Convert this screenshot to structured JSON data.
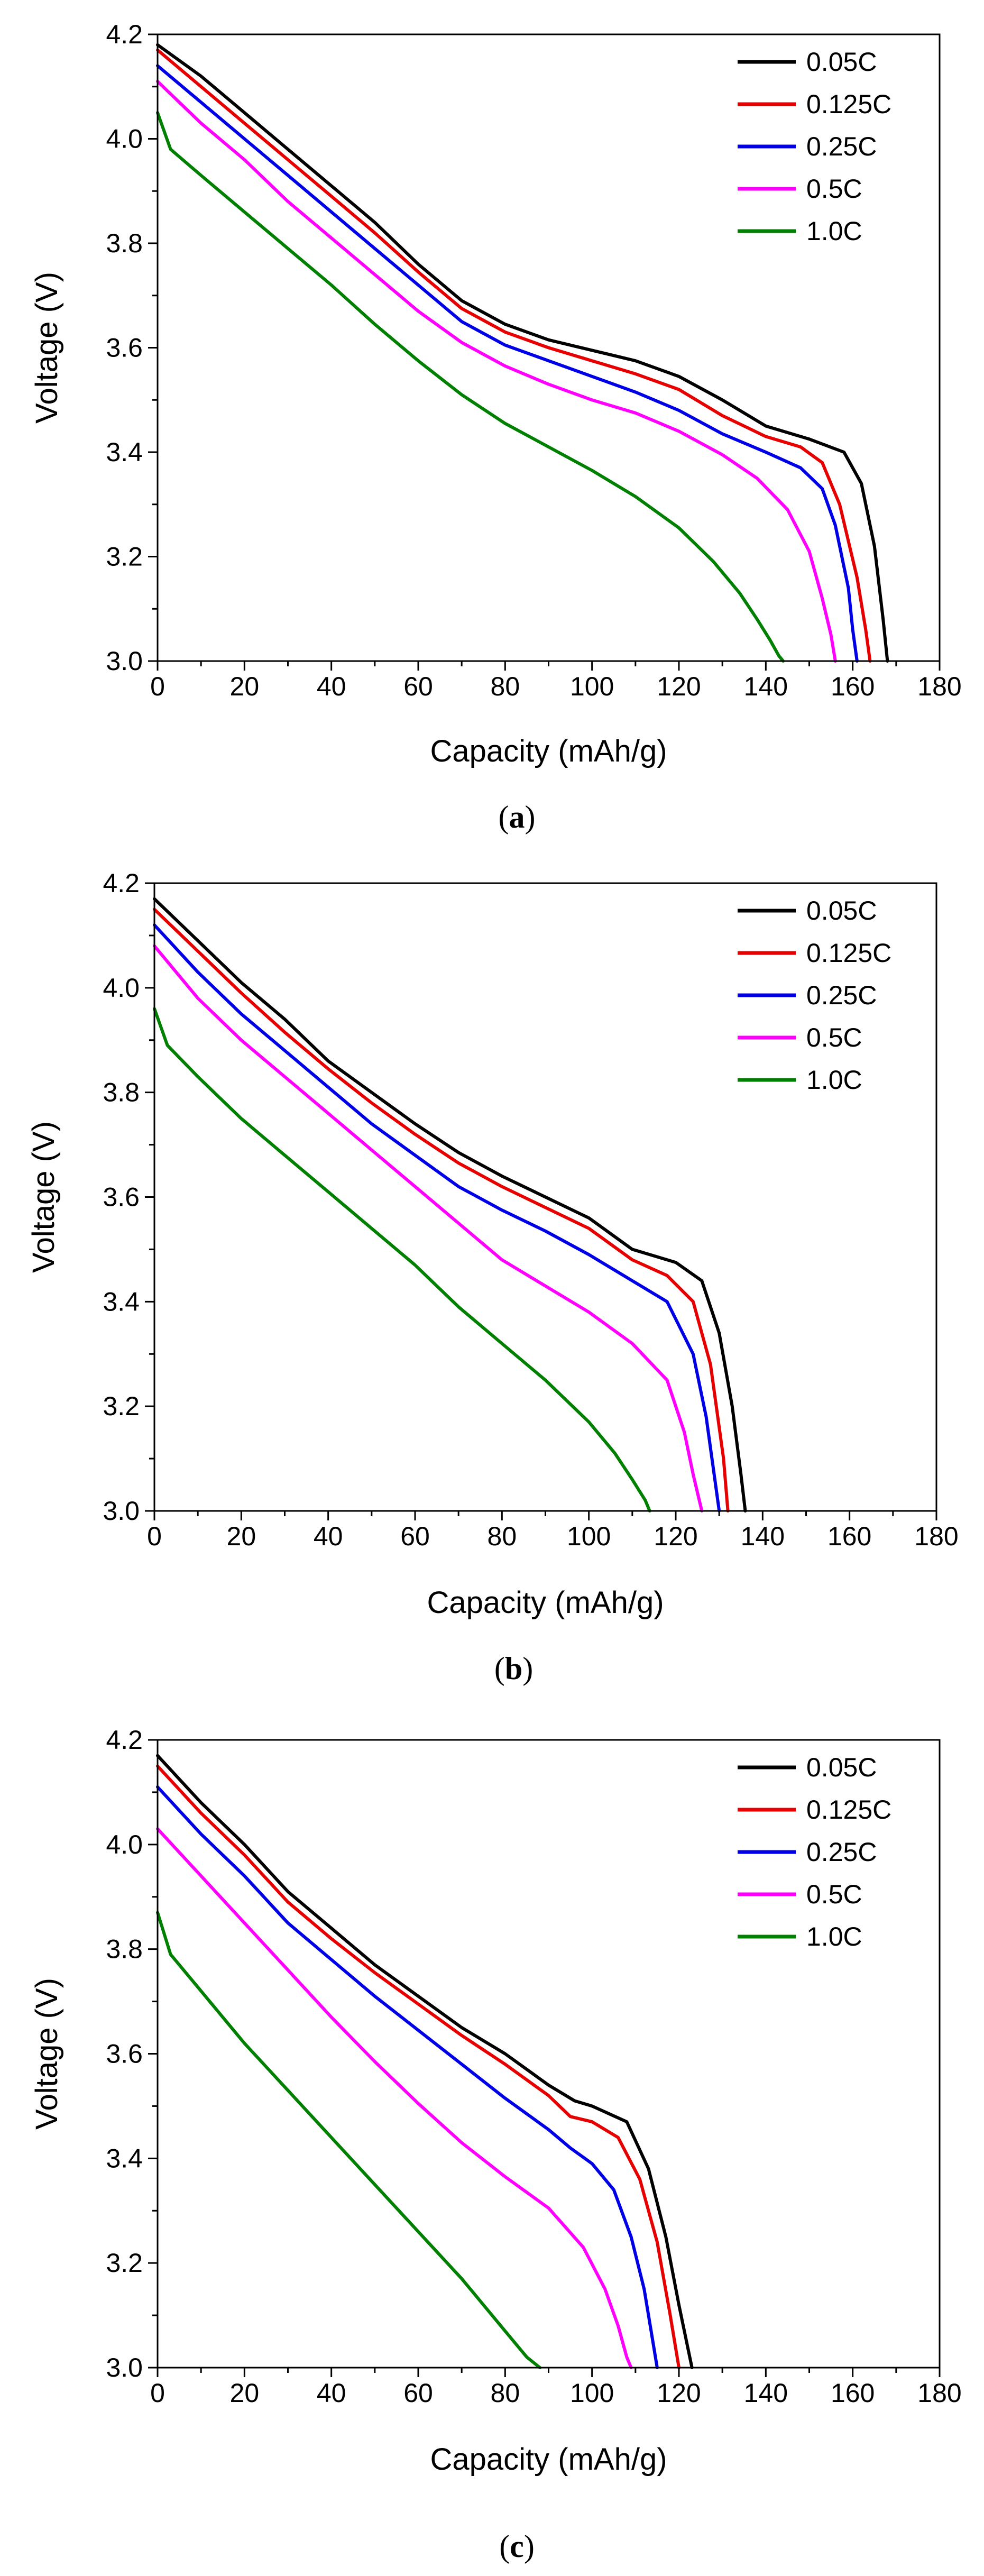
{
  "chart_data": [
    {
      "type": "line",
      "caption": "a",
      "xlabel": "Capacity (mAh/g)",
      "ylabel": "Voltage (V)",
      "xlim": [
        0,
        180
      ],
      "ylim": [
        3.0,
        4.2
      ],
      "xticks": [
        "0",
        "20",
        "40",
        "60",
        "80",
        "100",
        "120",
        "140",
        "160",
        "180"
      ],
      "yticks": [
        "3.0",
        "3.2",
        "3.4",
        "3.6",
        "3.8",
        "4.0",
        "4.2"
      ],
      "grid": false,
      "legend_position": "top-right",
      "series": [
        {
          "name": "0.05C",
          "color": "#000000",
          "x": [
            0,
            10,
            20,
            30,
            40,
            50,
            60,
            70,
            80,
            90,
            100,
            110,
            120,
            130,
            140,
            150,
            158,
            162,
            165,
            167,
            168
          ],
          "y": [
            4.18,
            4.12,
            4.05,
            3.98,
            3.91,
            3.84,
            3.76,
            3.69,
            3.645,
            3.615,
            3.595,
            3.575,
            3.545,
            3.5,
            3.45,
            3.425,
            3.4,
            3.34,
            3.22,
            3.08,
            3.0
          ]
        },
        {
          "name": "0.125C",
          "color": "#e60000",
          "x": [
            0,
            10,
            20,
            30,
            40,
            50,
            60,
            70,
            80,
            90,
            100,
            110,
            120,
            130,
            140,
            148,
            153,
            157,
            161,
            163,
            164
          ],
          "y": [
            4.17,
            4.1,
            4.03,
            3.96,
            3.89,
            3.82,
            3.745,
            3.675,
            3.63,
            3.6,
            3.575,
            3.55,
            3.52,
            3.47,
            3.43,
            3.41,
            3.38,
            3.3,
            3.16,
            3.06,
            3.0
          ]
        },
        {
          "name": "0.25C",
          "color": "#0000e6",
          "x": [
            0,
            10,
            20,
            30,
            40,
            50,
            60,
            70,
            80,
            90,
            100,
            110,
            120,
            130,
            140,
            148,
            153,
            156,
            159,
            160,
            161
          ],
          "y": [
            4.14,
            4.07,
            4.0,
            3.93,
            3.86,
            3.79,
            3.72,
            3.65,
            3.605,
            3.575,
            3.545,
            3.515,
            3.48,
            3.435,
            3.4,
            3.37,
            3.33,
            3.26,
            3.14,
            3.06,
            3.0
          ]
        },
        {
          "name": "0.5C",
          "color": "#ff00ff",
          "x": [
            0,
            10,
            20,
            30,
            40,
            50,
            60,
            70,
            80,
            90,
            100,
            110,
            120,
            130,
            138,
            145,
            150,
            153,
            155,
            156
          ],
          "y": [
            4.11,
            4.03,
            3.96,
            3.88,
            3.81,
            3.74,
            3.67,
            3.61,
            3.565,
            3.53,
            3.5,
            3.475,
            3.44,
            3.395,
            3.35,
            3.29,
            3.21,
            3.12,
            3.05,
            3.0
          ]
        },
        {
          "name": "1.0C",
          "color": "#008000",
          "x": [
            0,
            3,
            10,
            20,
            30,
            40,
            50,
            60,
            70,
            80,
            90,
            100,
            110,
            120,
            128,
            134,
            138,
            141,
            143,
            144
          ],
          "y": [
            4.05,
            3.98,
            3.93,
            3.86,
            3.79,
            3.72,
            3.645,
            3.575,
            3.51,
            3.455,
            3.41,
            3.365,
            3.315,
            3.255,
            3.19,
            3.13,
            3.08,
            3.04,
            3.01,
            3.0
          ]
        }
      ]
    },
    {
      "type": "line",
      "caption": "b",
      "xlabel": "Capacity (mAh/g)",
      "ylabel": "Voltage (V)",
      "xlim": [
        0,
        180
      ],
      "ylim": [
        3.0,
        4.2
      ],
      "xticks": [
        "0",
        "20",
        "40",
        "60",
        "80",
        "100",
        "120",
        "140",
        "160",
        "180"
      ],
      "yticks": [
        "3.0",
        "3.2",
        "3.4",
        "3.6",
        "3.8",
        "4.0",
        "4.2"
      ],
      "grid": false,
      "legend_position": "top-right",
      "series": [
        {
          "name": "0.05C",
          "color": "#000000",
          "x": [
            0,
            10,
            20,
            30,
            40,
            50,
            60,
            70,
            80,
            90,
            100,
            110,
            120,
            126,
            130,
            133,
            135,
            136
          ],
          "y": [
            4.17,
            4.09,
            4.01,
            3.94,
            3.86,
            3.8,
            3.74,
            3.685,
            3.64,
            3.6,
            3.56,
            3.5,
            3.475,
            3.44,
            3.34,
            3.2,
            3.07,
            3.0
          ]
        },
        {
          "name": "0.125C",
          "color": "#e60000",
          "x": [
            0,
            10,
            20,
            30,
            40,
            50,
            60,
            70,
            80,
            90,
            100,
            110,
            118,
            124,
            128,
            131,
            132
          ],
          "y": [
            4.15,
            4.07,
            3.99,
            3.915,
            3.845,
            3.78,
            3.72,
            3.665,
            3.62,
            3.58,
            3.54,
            3.48,
            3.45,
            3.4,
            3.28,
            3.1,
            3.0
          ]
        },
        {
          "name": "0.25C",
          "color": "#0000e6",
          "x": [
            0,
            10,
            20,
            30,
            40,
            50,
            60,
            70,
            80,
            90,
            100,
            110,
            118,
            124,
            127,
            129,
            130
          ],
          "y": [
            4.12,
            4.03,
            3.95,
            3.88,
            3.81,
            3.74,
            3.68,
            3.62,
            3.575,
            3.535,
            3.49,
            3.44,
            3.4,
            3.3,
            3.18,
            3.06,
            3.0
          ]
        },
        {
          "name": "0.5C",
          "color": "#ff00ff",
          "x": [
            0,
            10,
            20,
            30,
            40,
            50,
            60,
            70,
            80,
            90,
            100,
            110,
            118,
            122,
            124,
            126
          ],
          "y": [
            4.08,
            3.98,
            3.9,
            3.83,
            3.76,
            3.69,
            3.62,
            3.55,
            3.48,
            3.43,
            3.38,
            3.32,
            3.25,
            3.15,
            3.07,
            3.0
          ]
        },
        {
          "name": "1.0C",
          "color": "#008000",
          "x": [
            0,
            3,
            10,
            20,
            30,
            40,
            50,
            60,
            70,
            80,
            90,
            100,
            106,
            110,
            113,
            114
          ],
          "y": [
            3.96,
            3.89,
            3.83,
            3.75,
            3.68,
            3.61,
            3.54,
            3.47,
            3.39,
            3.32,
            3.25,
            3.17,
            3.11,
            3.06,
            3.02,
            3.0
          ]
        }
      ]
    },
    {
      "type": "line",
      "caption": "c",
      "xlabel": "Capacity (mAh/g)",
      "ylabel": "Voltage (V)",
      "xlim": [
        0,
        180
      ],
      "ylim": [
        3.0,
        4.2
      ],
      "xticks": [
        "0",
        "20",
        "40",
        "60",
        "80",
        "100",
        "120",
        "140",
        "160",
        "180"
      ],
      "yticks": [
        "3.0",
        "3.2",
        "3.4",
        "3.6",
        "3.8",
        "4.0",
        "4.2"
      ],
      "grid": false,
      "legend_position": "top-right",
      "series": [
        {
          "name": "0.05C",
          "color": "#000000",
          "x": [
            0,
            10,
            20,
            30,
            40,
            50,
            60,
            70,
            80,
            90,
            96,
            100,
            108,
            113,
            117,
            120,
            122,
            123
          ],
          "y": [
            4.17,
            4.08,
            4.0,
            3.91,
            3.84,
            3.77,
            3.71,
            3.65,
            3.6,
            3.54,
            3.51,
            3.5,
            3.47,
            3.38,
            3.25,
            3.12,
            3.04,
            3.0
          ]
        },
        {
          "name": "0.125C",
          "color": "#e60000",
          "x": [
            0,
            10,
            20,
            30,
            40,
            50,
            60,
            70,
            80,
            90,
            95,
            100,
            106,
            111,
            115,
            118,
            120
          ],
          "y": [
            4.15,
            4.06,
            3.98,
            3.89,
            3.82,
            3.755,
            3.695,
            3.635,
            3.58,
            3.52,
            3.48,
            3.47,
            3.44,
            3.36,
            3.24,
            3.1,
            3.0
          ]
        },
        {
          "name": "0.25C",
          "color": "#0000e6",
          "x": [
            0,
            10,
            20,
            30,
            40,
            50,
            60,
            70,
            80,
            90,
            95,
            100,
            105,
            109,
            112,
            114,
            115
          ],
          "y": [
            4.11,
            4.02,
            3.94,
            3.85,
            3.78,
            3.71,
            3.645,
            3.58,
            3.515,
            3.455,
            3.42,
            3.39,
            3.34,
            3.25,
            3.15,
            3.05,
            3.0
          ]
        },
        {
          "name": "0.5C",
          "color": "#ff00ff",
          "x": [
            0,
            10,
            20,
            30,
            40,
            50,
            60,
            70,
            80,
            90,
            98,
            103,
            106,
            108,
            109
          ],
          "y": [
            4.03,
            3.94,
            3.85,
            3.76,
            3.67,
            3.585,
            3.505,
            3.43,
            3.365,
            3.305,
            3.23,
            3.15,
            3.08,
            3.02,
            3.0
          ]
        },
        {
          "name": "1.0C",
          "color": "#008000",
          "x": [
            0,
            3,
            10,
            20,
            30,
            40,
            50,
            60,
            70,
            80,
            85,
            88
          ],
          "y": [
            3.87,
            3.79,
            3.72,
            3.62,
            3.53,
            3.44,
            3.35,
            3.26,
            3.17,
            3.07,
            3.02,
            3.0
          ]
        }
      ]
    }
  ]
}
